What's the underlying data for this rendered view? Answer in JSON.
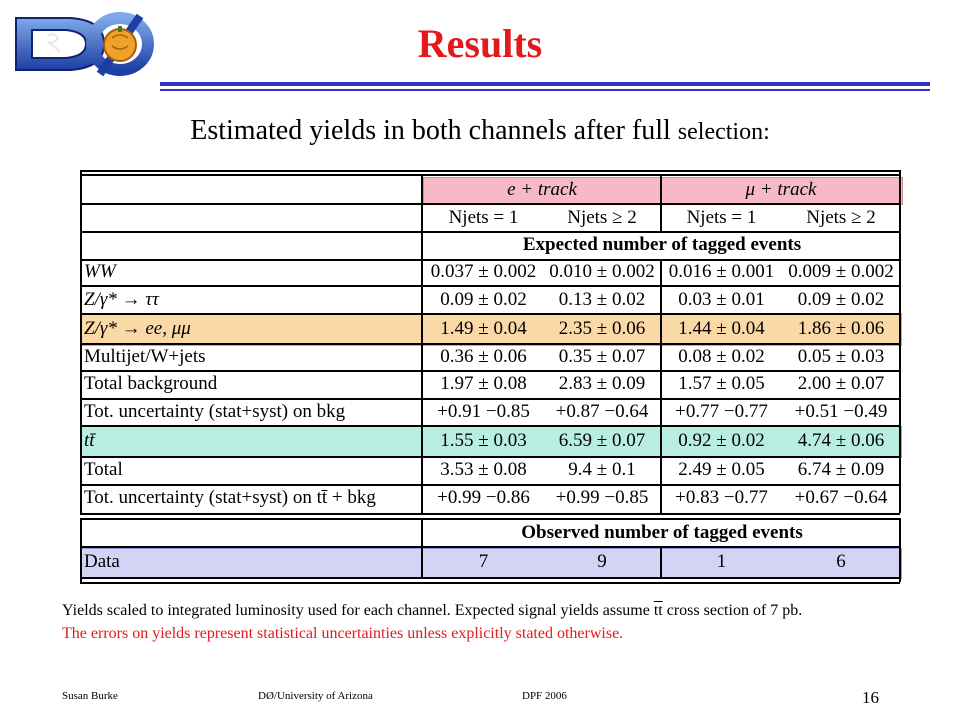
{
  "slide": {
    "title": "Results",
    "subtitle_main": "Estimated yields in both channels after full ",
    "subtitle_small": "selection:",
    "accent_color": "#e3191b",
    "rule_color": "#2b33cc",
    "logo_icon": "dzero-logo-icon"
  },
  "table": {
    "channels": [
      "e + track",
      "μ + track"
    ],
    "njets": [
      "Njets = 1",
      "Njets ≥ 2",
      "Njets = 1",
      "Njets ≥ 2"
    ],
    "expected_header": "Expected number of tagged events",
    "rows": [
      {
        "label": "WW",
        "values": [
          "0.037 ± 0.002",
          "0.010 ± 0.002",
          "0.016 ± 0.001",
          "0.009 ± 0.002"
        ]
      },
      {
        "label": "Z/γ* → ττ",
        "values": [
          "0.09 ± 0.02",
          "0.13 ± 0.02",
          "0.03 ± 0.01",
          "0.09 ± 0.02"
        ]
      },
      {
        "label": "Z/γ* → ee, μμ",
        "values": [
          "1.49 ± 0.04",
          "2.35 ± 0.06",
          "1.44 ± 0.04",
          "1.86 ± 0.06"
        ]
      },
      {
        "label": "Multijet/W+jets",
        "values": [
          "0.36 ± 0.06",
          "0.35 ± 0.07",
          "0.08 ± 0.02",
          "0.05 ± 0.03"
        ]
      },
      {
        "label": "Total background",
        "values": [
          "1.97 ± 0.08",
          "2.83 ± 0.09",
          "1.57 ± 0.05",
          "2.00 ± 0.07"
        ]
      },
      {
        "label": "Tot. uncertainty (stat+syst) on bkg",
        "values": [
          "+0.91 −0.85",
          "+0.87 −0.64",
          "+0.77 −0.77",
          "+0.51 −0.49"
        ]
      },
      {
        "label": "tt̄",
        "values": [
          "1.55 ± 0.03",
          "6.59 ± 0.07",
          "0.92 ± 0.02",
          "4.74 ± 0.06"
        ]
      },
      {
        "label": "Total",
        "values": [
          "3.53 ± 0.08",
          "9.4 ± 0.1",
          "2.49 ± 0.05",
          "6.74 ± 0.09"
        ]
      },
      {
        "label": "Tot. uncertainty (stat+syst) on tt̄ + bkg",
        "values": [
          "+0.99 −0.86",
          "+0.99 −0.85",
          "+0.83 −0.77",
          "+0.67 −0.64"
        ]
      }
    ],
    "observed_header": "Observed number of tagged events",
    "data_row": {
      "label": "Data",
      "values": [
        "7",
        "9",
        "1",
        "6"
      ]
    }
  },
  "notes": {
    "line1_a": "Yields scaled to integrated luminosity used for each channel. Expected signal yields assume ",
    "line1_tt": "tt",
    "line1_b": " cross section of 7 pb.",
    "line2": "The errors on yields represent statistical uncertainties unless explicitly stated otherwise."
  },
  "footer": {
    "author": "Susan Burke",
    "affiliation": "DØ/University of Arizona",
    "conference": "DPF 2006",
    "page": "16"
  }
}
